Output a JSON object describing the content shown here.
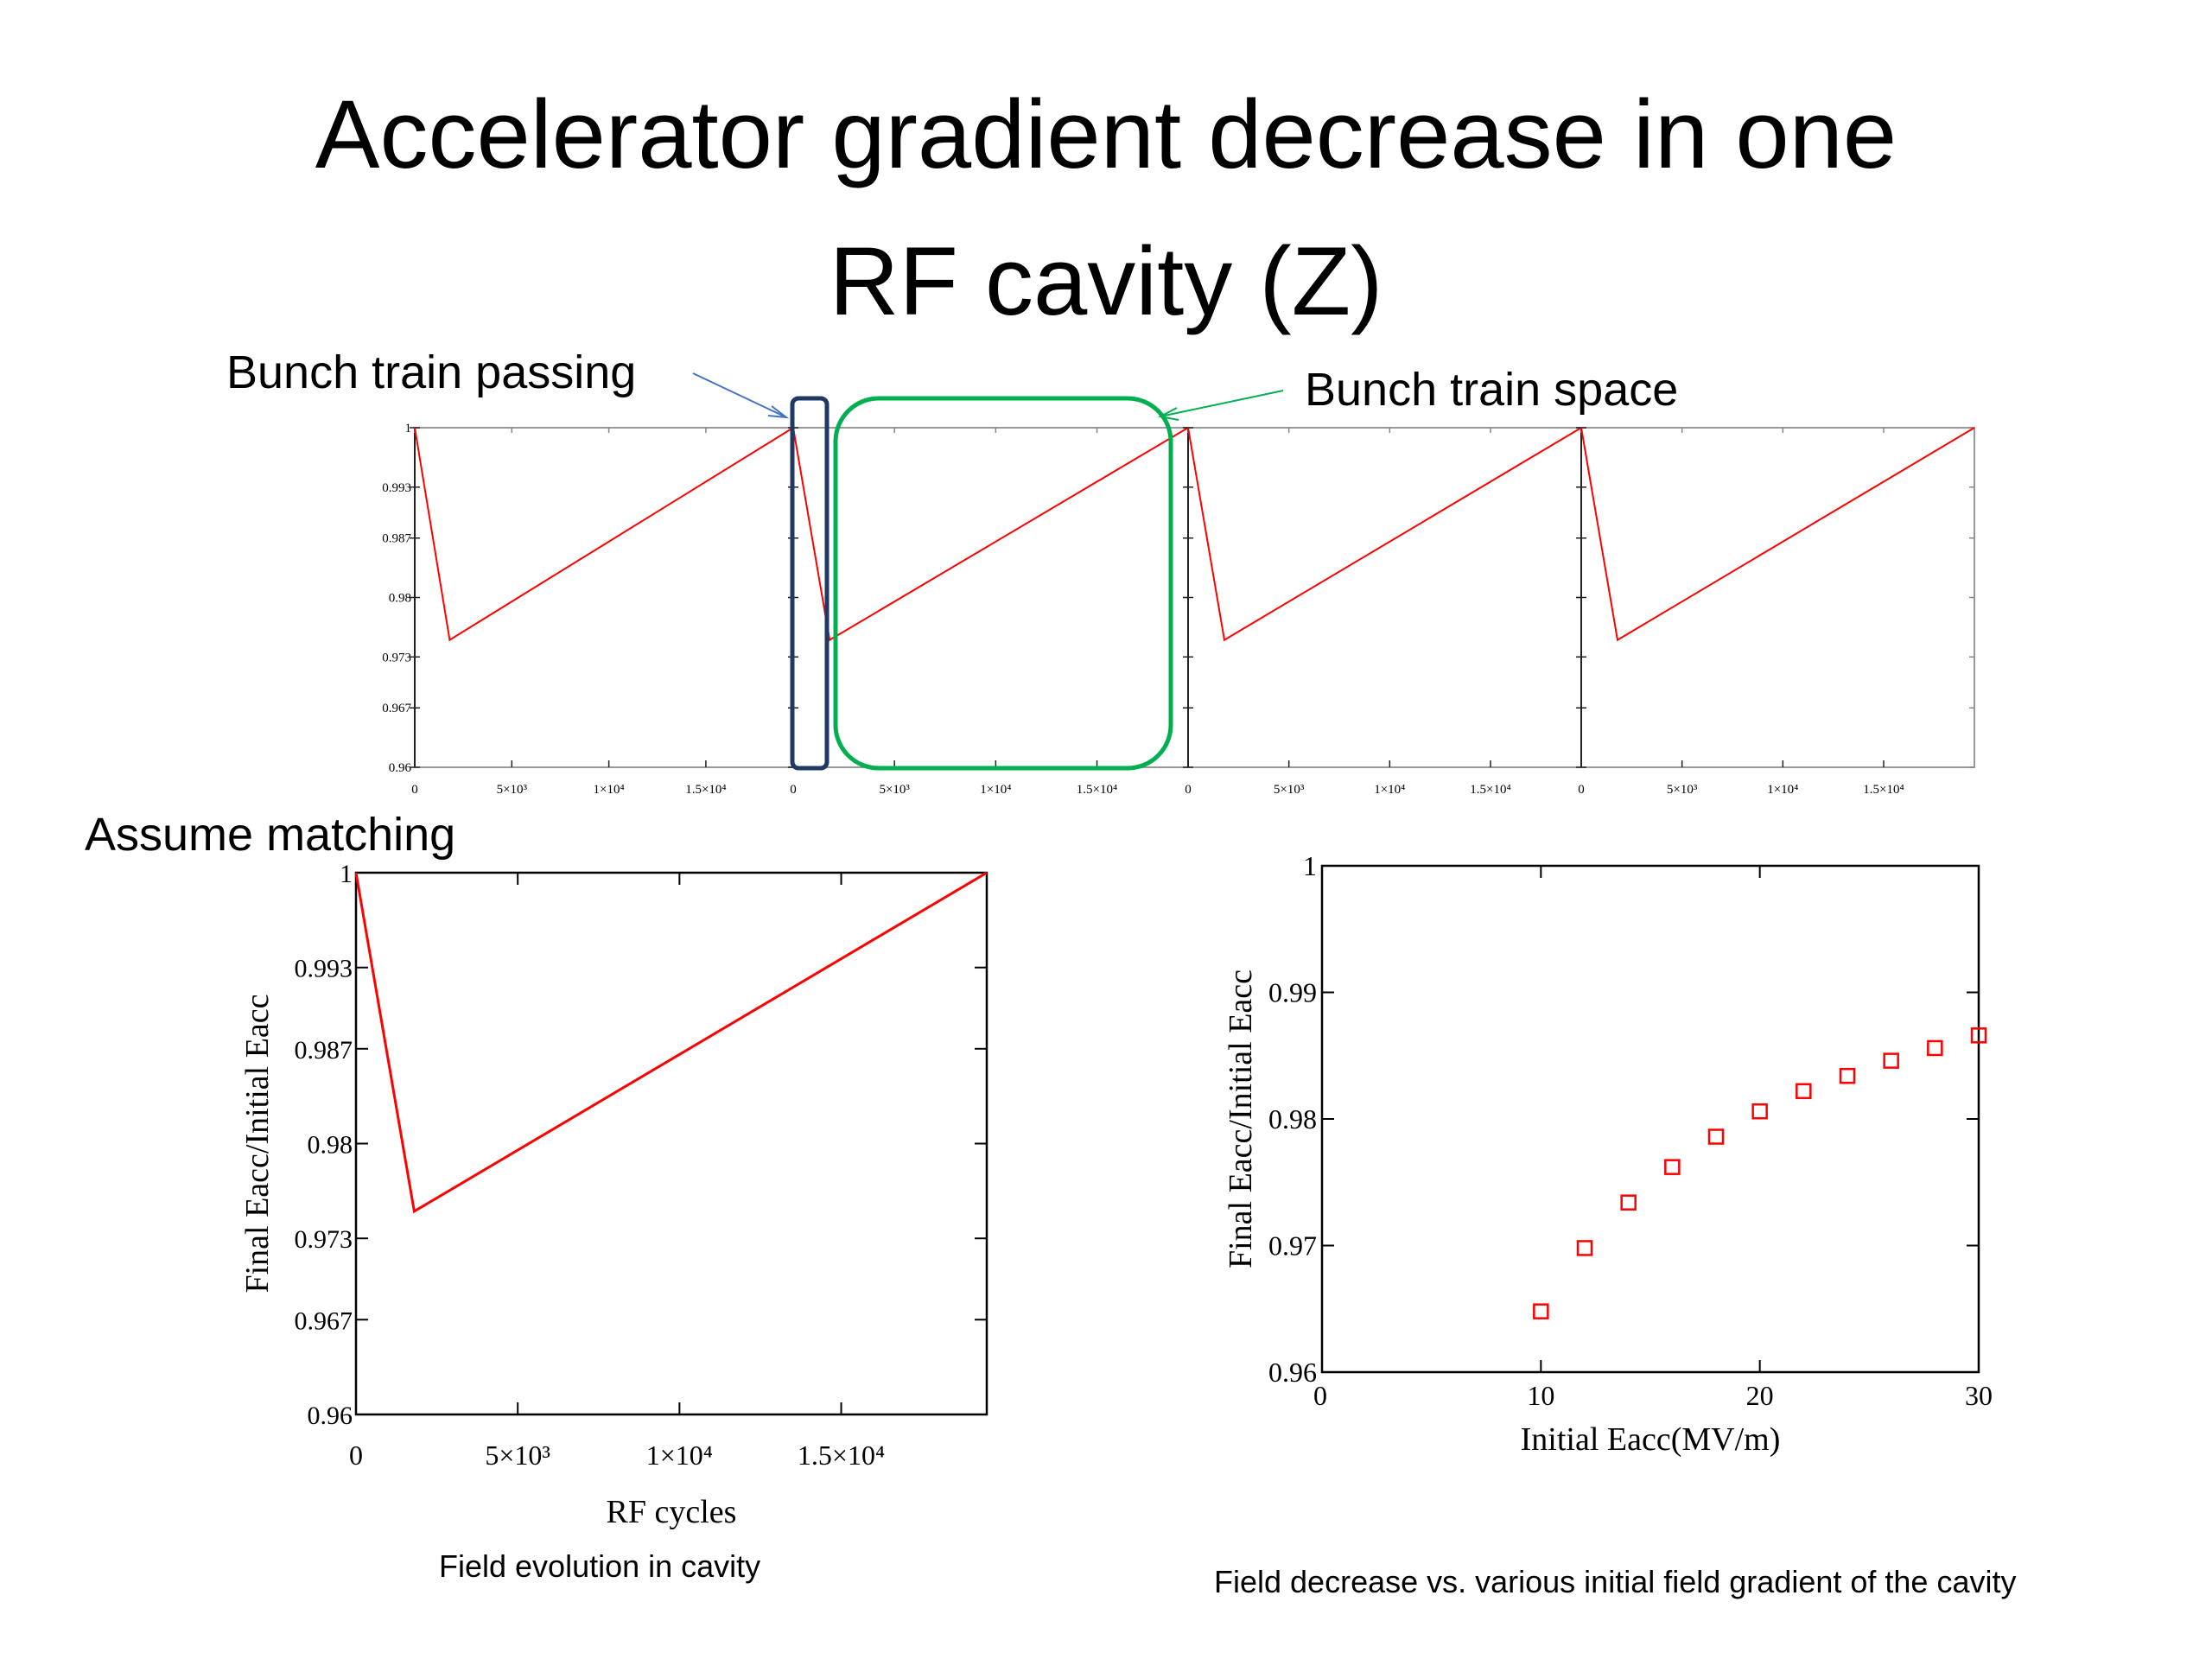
{
  "slide": {
    "title_line1": "Accelerator gradient decrease in one",
    "title_line2": "RF cavity (Z)",
    "label_passing": "Bunch train passing",
    "label_space": "Bunch train space",
    "label_matching": "Assume matching",
    "caption_left": "Field evolution in cavity",
    "caption_right": "Field decrease vs. various initial field gradient of the cavity"
  },
  "colors": {
    "series": "#ff0000",
    "passing_box": "#203864",
    "space_box": "#00b050",
    "passing_arrow": "#4472c4",
    "space_arrow": "#00b050"
  },
  "chart_data": [
    {
      "type": "line",
      "name": "top-strip",
      "panels": 4,
      "ylim": [
        0.96,
        1.0
      ],
      "yticks": [
        0.96,
        0.967,
        0.973,
        0.98,
        0.987,
        0.993,
        1
      ],
      "ytick_labels": [
        "0.96",
        "0.967",
        "0.973",
        "0.98",
        "0.987",
        "0.993",
        "1"
      ],
      "xlim": [
        0,
        19500
      ],
      "xticks": [
        0,
        5000,
        10000,
        15000
      ],
      "xtick_labels": [
        "0",
        "5×10³",
        "1×10⁴",
        "1.5×10⁴"
      ],
      "x": [
        0,
        1800,
        19500
      ],
      "y": [
        1.0,
        0.975,
        1.0
      ]
    },
    {
      "type": "line",
      "name": "field-evolution",
      "xlabel": "RF cycles",
      "ylabel": "Final Eacc/Initial Eacc",
      "ylim": [
        0.96,
        1.0
      ],
      "yticks": [
        0.96,
        0.967,
        0.973,
        0.98,
        0.987,
        0.993,
        1
      ],
      "ytick_labels": [
        "0.96",
        "0.967",
        "0.973",
        "0.98",
        "0.987",
        "0.993",
        "1"
      ],
      "xlim": [
        0,
        19500
      ],
      "xticks": [
        0,
        5000,
        10000,
        15000
      ],
      "xtick_labels": [
        "0",
        "5×10³",
        "1×10⁴",
        "1.5×10⁴"
      ],
      "x": [
        0,
        1800,
        19500
      ],
      "y": [
        1.0,
        0.975,
        1.0
      ]
    },
    {
      "type": "scatter",
      "name": "field-decrease",
      "xlabel": "Initial Eacc(MV/m)",
      "ylabel": "Final Eacc/Initial Eacc",
      "xlim": [
        0,
        30
      ],
      "ylim": [
        0.96,
        1.0
      ],
      "xticks": [
        0,
        10,
        20,
        30
      ],
      "xtick_labels": [
        "0",
        "10",
        "20",
        "30"
      ],
      "yticks": [
        0.96,
        0.97,
        0.98,
        0.99,
        1.0
      ],
      "ytick_labels": [
        "0.96",
        "0.97",
        "0.98",
        "0.99",
        "1"
      ],
      "x": [
        10,
        12,
        14,
        16,
        18,
        20,
        22,
        24,
        26,
        28,
        30
      ],
      "y": [
        0.9648,
        0.9698,
        0.9734,
        0.9762,
        0.9786,
        0.9806,
        0.9822,
        0.9834,
        0.9846,
        0.9856,
        0.9866
      ]
    }
  ]
}
